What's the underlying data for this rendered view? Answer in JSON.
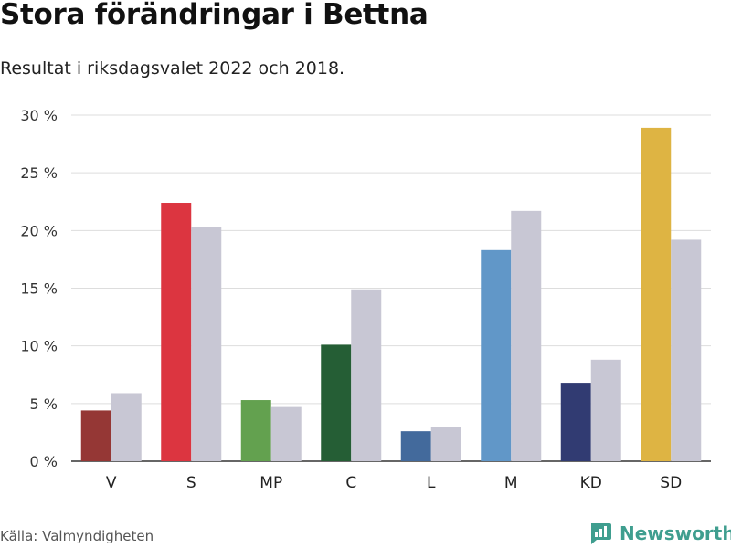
{
  "title": "Stora förändringar i Bettna",
  "subtitle": "Resultat i riksdagsvalet 2022 och 2018.",
  "source": "Källa: Valmyndigheten",
  "brand": "Newsworthy",
  "colors": {
    "previous": "#c8c7d4",
    "grid": "#dddddd",
    "axis": "#333333",
    "brand": "#3f9e8f"
  },
  "chart_data": {
    "type": "bar",
    "categories": [
      "V",
      "S",
      "MP",
      "C",
      "L",
      "M",
      "KD",
      "SD"
    ],
    "series": [
      {
        "values": [
          4.4,
          22.4,
          5.3,
          10.1,
          2.6,
          18.3,
          6.8,
          28.9
        ],
        "colors": [
          "#953735",
          "#dc3540",
          "#63a14f",
          "#255e35",
          "#436a9c",
          "#6197c8",
          "#313b72",
          "#deb443"
        ]
      },
      {
        "values": [
          5.9,
          20.3,
          4.7,
          14.9,
          3.0,
          21.7,
          8.8,
          19.2
        ],
        "color": "#c8c7d4"
      }
    ],
    "ylim": [
      0,
      30
    ],
    "yticks": [
      0,
      5,
      10,
      15,
      20,
      25,
      30
    ],
    "ytick_labels": [
      "0 %",
      "5 %",
      "10 %",
      "15 %",
      "20 %",
      "25 %",
      "30 %"
    ],
    "grid": true
  }
}
